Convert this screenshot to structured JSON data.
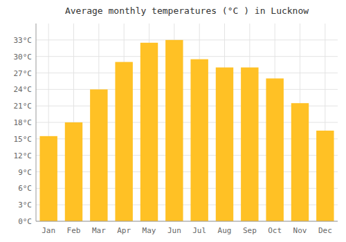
{
  "chart_data": {
    "type": "bar",
    "title": "Average monthly temperatures (°C ) in Lucknow",
    "categories": [
      "Jan",
      "Feb",
      "Mar",
      "Apr",
      "May",
      "Jun",
      "Jul",
      "Aug",
      "Sep",
      "Oct",
      "Nov",
      "Dec"
    ],
    "values": [
      15.5,
      18.0,
      24.0,
      29.0,
      32.5,
      33.0,
      29.5,
      28.0,
      28.0,
      26.0,
      21.5,
      16.5
    ],
    "color": "#FFC125",
    "ylim": [
      0,
      36
    ],
    "yticks": [
      {
        "value": 0,
        "label": "0°C"
      },
      {
        "value": 3,
        "label": "3°C"
      },
      {
        "value": 6,
        "label": "6°C"
      },
      {
        "value": 9,
        "label": "9°C"
      },
      {
        "value": 12,
        "label": "12°C"
      },
      {
        "value": 15,
        "label": "15°C"
      },
      {
        "value": 18,
        "label": "18°C"
      },
      {
        "value": 21,
        "label": "21°C"
      },
      {
        "value": 24,
        "label": "24°C"
      },
      {
        "value": 27,
        "label": "27°C"
      },
      {
        "value": 30,
        "label": "30°C"
      },
      {
        "value": 33,
        "label": "33°C"
      }
    ],
    "grid": true
  }
}
